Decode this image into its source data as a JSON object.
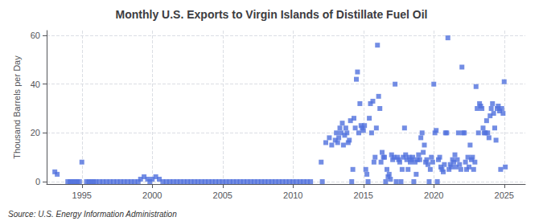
{
  "chart_data": {
    "type": "scatter",
    "title": "Monthly U.S. Exports to Virgin Islands of Distillate Fuel Oil",
    "ylabel": "Thousand Barrels per Day",
    "annotations": [
      "Source: U.S. Energy Information Administration"
    ],
    "marker": "square",
    "grid": true,
    "xlim": [
      1992.5,
      2026.5
    ],
    "xticks": [
      1995,
      2000,
      2005,
      2010,
      2015,
      2020,
      2025
    ],
    "ylim": [
      -1,
      62
    ],
    "yticks": [
      0,
      20,
      40,
      60
    ],
    "x": [
      1993.08,
      1993.25,
      1994,
      1994.17,
      1994.33,
      1994.5,
      1994.67,
      1994.83,
      1995,
      1995.33,
      1995.5,
      1995.67,
      1995.83,
      1996,
      1996.25,
      1996.5,
      1996.75,
      1997,
      1997.25,
      1997.5,
      1997.75,
      1998,
      1998.25,
      1998.5,
      1998.75,
      1999,
      1999.17,
      1999.42,
      1999.67,
      1999.83,
      2000,
      2000.25,
      2000.5,
      2000.75,
      2001,
      2001.25,
      2001.5,
      2001.75,
      2002,
      2002.25,
      2002.5,
      2002.75,
      2003,
      2003.25,
      2003.5,
      2003.75,
      2004,
      2004.25,
      2004.5,
      2004.75,
      2005,
      2005.25,
      2005.5,
      2005.75,
      2006,
      2006.25,
      2006.5,
      2006.75,
      2007,
      2007.25,
      2007.5,
      2007.75,
      2008,
      2008.25,
      2008.5,
      2008.75,
      2009,
      2009.25,
      2009.5,
      2009.75,
      2010,
      2010.25,
      2010.5,
      2010.75,
      2011,
      2011.25,
      2012,
      2012.08,
      2012.33,
      2012.58,
      2012.75,
      2013,
      2013.08,
      2013.17,
      2013.25,
      2013.33,
      2013.42,
      2013.5,
      2013.58,
      2013.67,
      2013.75,
      2013.83,
      2013.92,
      2014,
      2014.08,
      2014.17,
      2014.25,
      2014.33,
      2014.42,
      2014.5,
      2014.58,
      2014.67,
      2014.75,
      2014.83,
      2014.92,
      2015,
      2015.08,
      2015.17,
      2015.25,
      2015.33,
      2015.42,
      2015.5,
      2015.58,
      2015.67,
      2015.75,
      2015.83,
      2015.92,
      2016,
      2016.08,
      2016.17,
      2016.25,
      2016.33,
      2016.42,
      2016.5,
      2016.58,
      2016.67,
      2016.75,
      2016.83,
      2016.92,
      2017,
      2017.08,
      2017.17,
      2017.25,
      2017.33,
      2017.42,
      2017.5,
      2017.58,
      2017.67,
      2017.75,
      2017.83,
      2017.92,
      2018,
      2018.08,
      2018.17,
      2018.25,
      2018.33,
      2018.42,
      2018.5,
      2018.58,
      2018.67,
      2018.75,
      2018.83,
      2018.92,
      2019,
      2019.08,
      2019.17,
      2019.25,
      2019.33,
      2019.42,
      2019.5,
      2019.58,
      2019.67,
      2019.75,
      2019.83,
      2019.92,
      2020,
      2020.08,
      2020.17,
      2020.25,
      2020.33,
      2020.42,
      2020.5,
      2020.58,
      2020.67,
      2020.75,
      2020.83,
      2020.92,
      2021,
      2021.08,
      2021.17,
      2021.25,
      2021.33,
      2021.42,
      2021.5,
      2021.58,
      2021.67,
      2021.75,
      2021.83,
      2021.92,
      2022,
      2022.08,
      2022.17,
      2022.25,
      2022.33,
      2022.42,
      2022.5,
      2022.58,
      2022.67,
      2022.75,
      2022.83,
      2022.92,
      2023,
      2023.08,
      2023.17,
      2023.25,
      2023.33,
      2023.42,
      2023.5,
      2023.58,
      2023.67,
      2023.75,
      2023.83,
      2023.92,
      2024,
      2024.08,
      2024.17,
      2024.25,
      2024.33,
      2024.42,
      2024.5,
      2024.58,
      2024.67,
      2024.75,
      2024.83,
      2024.92,
      2025,
      2025.08
    ],
    "values": [
      4,
      3,
      0,
      0,
      0,
      0,
      0,
      0,
      8,
      0,
      0,
      0,
      0,
      0,
      0,
      0,
      0,
      0,
      0,
      0,
      0,
      0,
      0,
      0,
      0,
      0,
      1,
      2,
      1,
      0,
      1,
      2,
      1,
      0,
      0,
      0,
      0,
      0,
      0,
      0,
      0,
      0,
      0,
      0,
      0,
      0,
      0,
      0,
      0,
      0,
      0,
      0,
      0,
      0,
      0,
      0,
      0,
      0,
      0,
      0,
      0,
      0,
      0,
      0,
      0,
      0,
      0,
      0,
      0,
      0,
      0,
      0,
      0,
      0,
      0,
      0,
      8,
      0,
      16,
      18,
      15,
      17,
      20,
      16,
      18,
      22,
      20,
      24,
      15,
      19,
      22,
      20,
      16,
      17,
      25,
      0,
      5,
      26,
      22,
      42,
      45,
      20,
      32,
      23,
      22,
      21,
      23,
      5,
      3,
      0,
      26,
      32,
      20,
      33,
      8,
      10,
      22,
      56,
      35,
      30,
      8,
      12,
      10,
      10,
      0,
      5,
      2,
      3,
      1,
      11,
      9,
      10,
      40,
      0,
      10,
      9,
      8,
      0,
      5,
      10,
      22,
      11,
      9,
      5,
      10,
      8,
      9,
      10,
      0,
      8,
      3,
      9,
      11,
      9,
      18,
      20,
      12,
      15,
      8,
      9,
      7,
      0,
      5,
      10,
      8,
      40,
      20,
      21,
      0,
      9,
      10,
      6,
      5,
      4,
      7,
      20,
      20,
      59,
      5,
      7,
      6,
      9,
      8,
      11,
      6,
      9,
      20,
      7,
      5,
      47,
      20,
      20,
      8,
      5,
      10,
      6,
      15,
      9,
      10,
      5,
      8,
      39,
      30,
      20,
      32,
      31,
      30,
      22,
      20,
      20,
      25,
      20,
      18,
      27,
      30,
      32,
      28,
      22,
      17,
      30,
      31,
      29,
      5,
      30,
      28,
      41,
      6
    ]
  }
}
